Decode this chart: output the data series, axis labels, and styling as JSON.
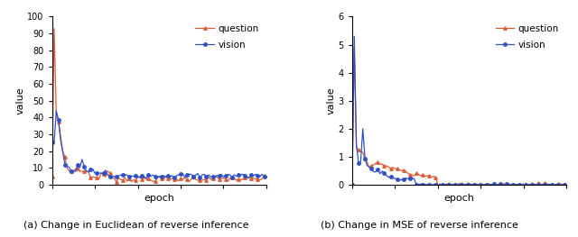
{
  "left": {
    "xlabel": "epoch",
    "ylabel": "value",
    "ylim": [
      0,
      100
    ],
    "yticks": [
      0,
      10,
      20,
      30,
      40,
      50,
      60,
      70,
      80,
      90,
      100
    ],
    "question_color": "#d95f3b",
    "vision_color": "#3050c8",
    "legend_labels": [
      "question",
      "vision"
    ]
  },
  "right": {
    "xlabel": "epoch",
    "ylabel": "value",
    "ylim": [
      0,
      6
    ],
    "yticks": [
      0,
      1,
      2,
      3,
      4,
      5,
      6
    ],
    "question_color": "#d95f3b",
    "vision_color": "#3050c8",
    "legend_labels": [
      "question",
      "vision"
    ]
  },
  "fig_bg": "#ffffff",
  "caption_left": "(a) Change in Euclidean of reverse inference",
  "caption_right": "(b) Change in MSE of reverse inference"
}
